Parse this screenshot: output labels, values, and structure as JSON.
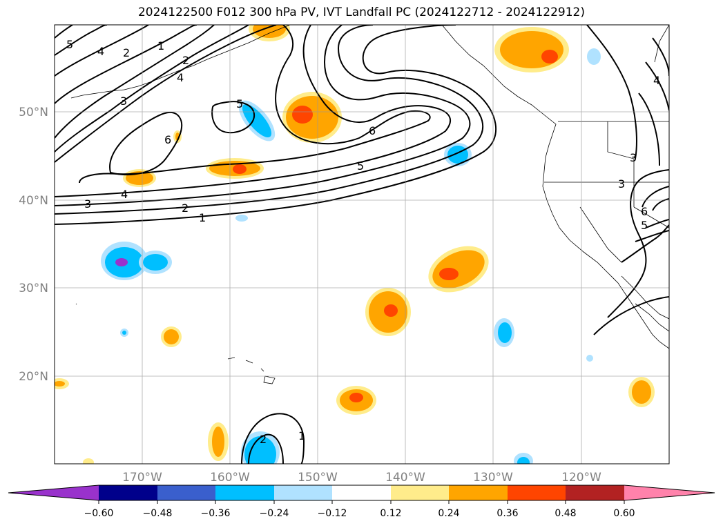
{
  "title": "2024122500 F012 300 hPa PV, IVT Landfall PC (2024122712 - 2024122912)",
  "map": {
    "lon_range": [
      -180,
      -110
    ],
    "lat_range": [
      10,
      60
    ],
    "lat_ticks": [
      {
        "value": 50,
        "label": "50°N"
      },
      {
        "value": 40,
        "label": "40°N"
      },
      {
        "value": 30,
        "label": "30°N"
      },
      {
        "value": 20,
        "label": "20°N"
      }
    ],
    "lon_ticks": [
      {
        "value": -170,
        "label": "170°W"
      },
      {
        "value": -160,
        "label": "160°W"
      },
      {
        "value": -150,
        "label": "150°W"
      },
      {
        "value": -140,
        "label": "140°W"
      },
      {
        "value": -130,
        "label": "130°W"
      },
      {
        "value": -120,
        "label": "120°W"
      }
    ],
    "grid": true
  },
  "colorbar": {
    "colors": [
      "#9932cc",
      "#00008b",
      "#3a5fcd",
      "#00bfff",
      "#b0e2ff",
      "#ffffff",
      "#ffec8b",
      "#ffa500",
      "#ff4500",
      "#b22222",
      "#ff82ab"
    ],
    "tick_labels": [
      "−0.60",
      "−0.48",
      "−0.36",
      "−0.24",
      "−0.12",
      "0.12",
      "0.24",
      "0.36",
      "0.48",
      "0.60"
    ],
    "extend": "both"
  },
  "contour_labels": [
    "5",
    "4",
    "2",
    "1",
    "2",
    "4",
    "3",
    "5",
    "6",
    "6",
    "5",
    "4",
    "3",
    "2",
    "1",
    "2",
    "1",
    "3",
    "6",
    "5",
    "4",
    "3"
  ]
}
